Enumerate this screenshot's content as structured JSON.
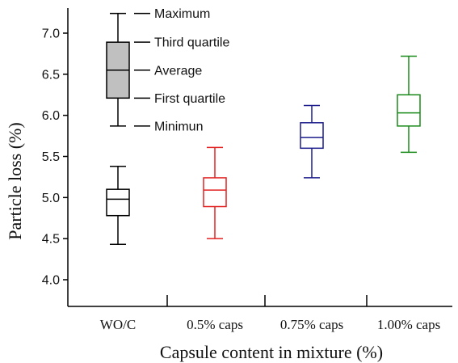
{
  "chart_data": {
    "type": "box",
    "xlabel": "Capsule content in mixture (%)",
    "ylabel": "Particle loss (%)",
    "ylim": [
      3.85,
      7.25
    ],
    "yticks": [
      "4.0",
      "4.5",
      "5.0",
      "5.5",
      "6.0",
      "6.5",
      "7.0"
    ],
    "grid": false,
    "categories": [
      "WO/C",
      "0.5% caps",
      "0.75% caps",
      "1.00% caps"
    ],
    "series": [
      {
        "category": "WO/C",
        "color": "#000000",
        "min": 4.43,
        "q1": 4.78,
        "average": 4.98,
        "q3": 5.1,
        "max": 5.38
      },
      {
        "category": "0.5% caps",
        "color": "#e32222",
        "min": 4.5,
        "q1": 4.89,
        "average": 5.09,
        "q3": 5.24,
        "max": 5.61
      },
      {
        "category": "0.75% caps",
        "color": "#1c1c8c",
        "min": 5.24,
        "q1": 5.6,
        "average": 5.73,
        "q3": 5.91,
        "max": 6.12
      },
      {
        "category": "1.00% caps",
        "color": "#1a8a1a",
        "min": 5.55,
        "q1": 5.87,
        "average": 6.03,
        "q3": 6.25,
        "max": 6.72
      }
    ],
    "legend": {
      "placement": "top-left",
      "fill": "#c0c0c0",
      "labels": {
        "max": "Maximum",
        "q3": "Third quartile",
        "average": "Average",
        "q1": "First quartile",
        "min": "Minimun"
      },
      "example": {
        "min": 5.87,
        "q1": 6.21,
        "average": 6.55,
        "q3": 6.89,
        "max": 7.24
      }
    }
  }
}
